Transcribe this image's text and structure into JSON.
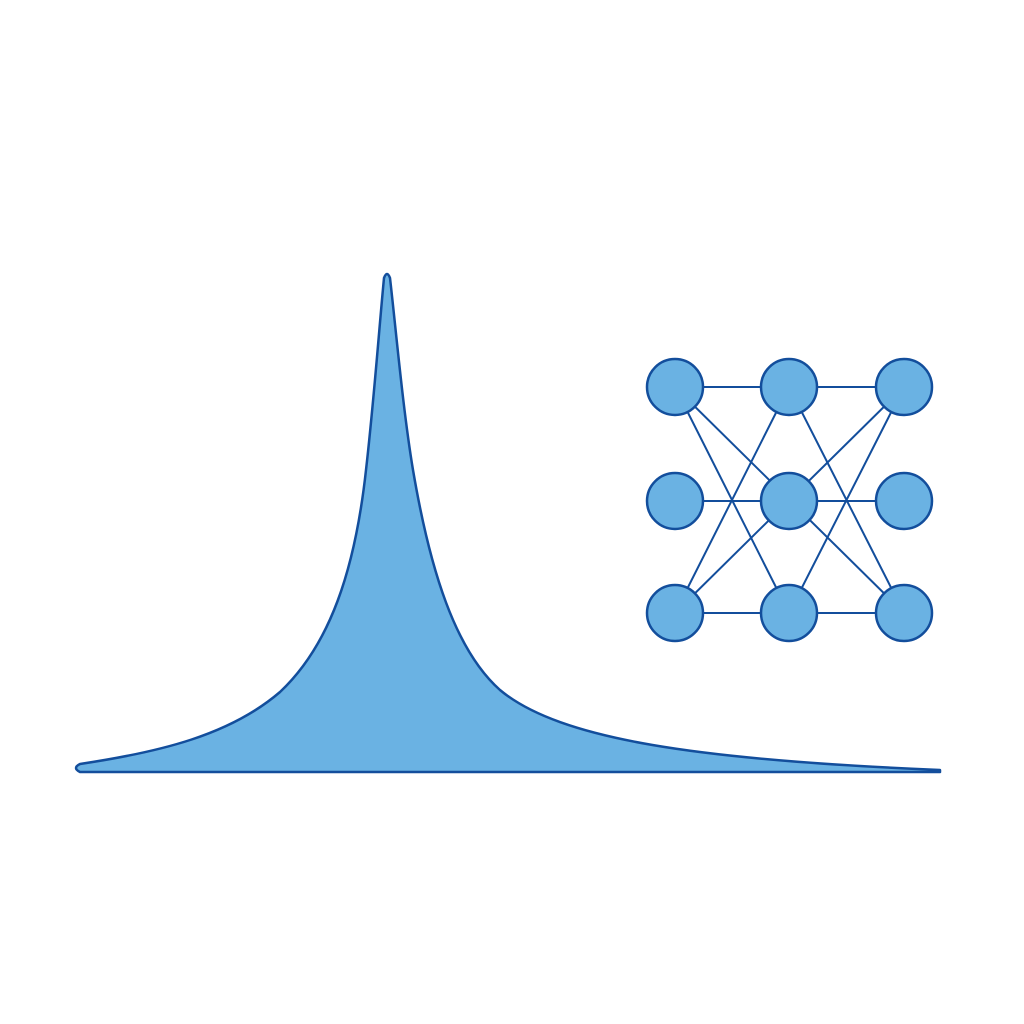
{
  "colors": {
    "fill": "#6AB2E3",
    "stroke": "#134E9C",
    "background": "#FFFFFF"
  },
  "peak_curve": {
    "shape": "sharp-peaked-distribution",
    "skew": "right-tailed"
  },
  "network": {
    "layout": "3x3-grid",
    "node_count": 9,
    "nodes": [
      {
        "id": "n00",
        "row": 0,
        "col": 0
      },
      {
        "id": "n01",
        "row": 0,
        "col": 1
      },
      {
        "id": "n02",
        "row": 0,
        "col": 2
      },
      {
        "id": "n10",
        "row": 1,
        "col": 0
      },
      {
        "id": "n11",
        "row": 1,
        "col": 1
      },
      {
        "id": "n12",
        "row": 1,
        "col": 2
      },
      {
        "id": "n20",
        "row": 2,
        "col": 0
      },
      {
        "id": "n21",
        "row": 2,
        "col": 1
      },
      {
        "id": "n22",
        "row": 2,
        "col": 2
      }
    ],
    "edges": [
      [
        "n00",
        "n01"
      ],
      [
        "n01",
        "n02"
      ],
      [
        "n20",
        "n21"
      ],
      [
        "n21",
        "n22"
      ],
      [
        "n10",
        "n11"
      ],
      [
        "n11",
        "n12"
      ],
      [
        "n00",
        "n21"
      ],
      [
        "n02",
        "n21"
      ],
      [
        "n01",
        "n20"
      ],
      [
        "n01",
        "n22"
      ],
      [
        "n20",
        "n02"
      ],
      [
        "n22",
        "n00"
      ]
    ]
  }
}
